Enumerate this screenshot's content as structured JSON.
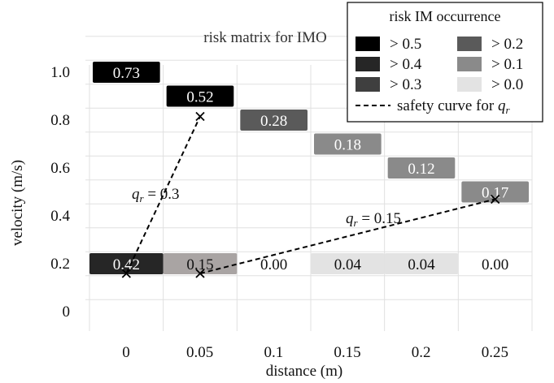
{
  "chart_data": {
    "type": "heatmap",
    "title": "risk matrix for IMO",
    "xlabel": "distance (m)",
    "ylabel": "velocity (m/s)",
    "x_ticks": [
      "0",
      "0.05",
      "0.1",
      "0.15",
      "0.2",
      "0.25"
    ],
    "y_ticks": [
      "0",
      "0.2",
      "0.4",
      "0.6",
      "0.8",
      "1.0"
    ],
    "xlim": [
      0,
      0.25
    ],
    "ylim": [
      0,
      1.0
    ],
    "grid": true,
    "cells": [
      {
        "x": 0,
        "y": 1.0,
        "value": 0.73,
        "label": "0.73"
      },
      {
        "x": 0.05,
        "y": 0.9,
        "value": 0.52,
        "label": "0.52"
      },
      {
        "x": 0.1,
        "y": 0.8,
        "value": 0.28,
        "label": "0.28"
      },
      {
        "x": 0.15,
        "y": 0.7,
        "value": 0.18,
        "label": "0.18"
      },
      {
        "x": 0.2,
        "y": 0.6,
        "value": 0.12,
        "label": "0.12"
      },
      {
        "x": 0.25,
        "y": 0.5,
        "value": 0.17,
        "label": "0.17"
      },
      {
        "x": 0,
        "y": 0.2,
        "value": 0.42,
        "label": "0.42"
      },
      {
        "x": 0.05,
        "y": 0.2,
        "value": 0.15,
        "label": "0.15"
      },
      {
        "x": 0.1,
        "y": 0.2,
        "value": 0.0,
        "label": "0.00"
      },
      {
        "x": 0.15,
        "y": 0.2,
        "value": 0.04,
        "label": "0.04"
      },
      {
        "x": 0.2,
        "y": 0.2,
        "value": 0.04,
        "label": "0.04"
      },
      {
        "x": 0.25,
        "y": 0.2,
        "value": 0.0,
        "label": "0.00"
      }
    ],
    "safety_curves": [
      {
        "label_var": "q",
        "label_sub": "r",
        "label_rest": " = 0.3",
        "points": [
          [
            0.025,
            0.2
          ],
          [
            0.075,
            0.9
          ]
        ]
      },
      {
        "label_var": "q",
        "label_sub": "r",
        "label_rest": " = 0.15",
        "points": [
          [
            0.075,
            0.2
          ],
          [
            0.275,
            0.5
          ]
        ]
      }
    ],
    "legend": {
      "title": "risk IM occurrence",
      "position": "top-right",
      "bins": [
        {
          "label": "> 0.5",
          "color": "#000000",
          "min": 0.5
        },
        {
          "label": "> 0.4",
          "color": "#262626",
          "min": 0.4
        },
        {
          "label": "> 0.3",
          "color": "#3f3f3f",
          "min": 0.3
        },
        {
          "label": "> 0.2",
          "color": "#5a5a5a",
          "min": 0.2
        },
        {
          "label": "> 0.1",
          "color": "#8a8a8a",
          "min": 0.1
        },
        {
          "label": "> 0.0",
          "color": "#e3e3e3",
          "min": 0.0
        }
      ],
      "curve_label": "safety curve for ",
      "curve_var": "q",
      "curve_sub": "r"
    }
  }
}
